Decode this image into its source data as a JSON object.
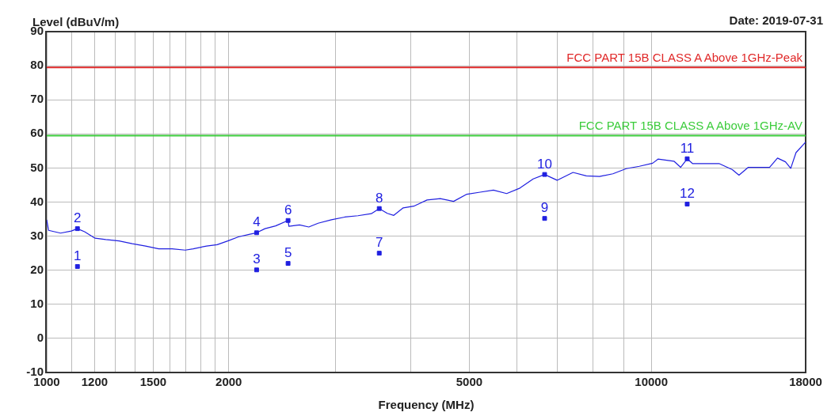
{
  "chart_data": {
    "type": "line",
    "xlabel": "Frequency (MHz)",
    "ylabel": "Level (dBuV/m)",
    "log": "x",
    "grid": true,
    "xlim": [
      1000,
      18000
    ],
    "xticks": [
      1000,
      {
        "value": 1100,
        "label": null
      },
      1200,
      {
        "value": 1300,
        "label": null
      },
      {
        "value": 1400,
        "label": null
      },
      1500,
      {
        "value": 1600,
        "label": null
      },
      {
        "value": 1700,
        "label": null
      },
      {
        "value": 1800,
        "label": null
      },
      {
        "value": 1900,
        "label": null
      },
      2000,
      {
        "value": 3000,
        "label": null
      },
      {
        "value": 4000,
        "label": null
      },
      5000,
      {
        "value": 6000,
        "label": null
      },
      {
        "value": 7000,
        "label": null
      },
      {
        "value": 8000,
        "label": null
      },
      {
        "value": 9000,
        "label": null
      },
      10000,
      18000
    ],
    "ylim": [
      -10,
      90
    ],
    "yticks": [
      -10,
      0,
      10,
      20,
      30,
      40,
      50,
      60,
      70,
      80,
      90
    ],
    "series": [
      {
        "type": "line",
        "color": "#2020e0",
        "x": [
          1000,
          1007,
          1054,
          1098,
          1124,
          1155,
          1202,
          1252,
          1317,
          1385,
          1457,
          1532,
          1612,
          1695,
          1747,
          1838,
          1914,
          1993,
          2075,
          2161,
          2224,
          2296,
          2391,
          2507,
          2515,
          2619,
          2713,
          2811,
          2957,
          3111,
          3272,
          3442,
          3548,
          3658,
          3750,
          3887,
          4046,
          4256,
          4476,
          4709,
          4953,
          5209,
          5481,
          5764,
          6062,
          6377,
          6661,
          6985,
          7421,
          7806,
          8211,
          8638,
          9087,
          9555,
          10051,
          10258,
          10899,
          11179,
          11464,
          11698,
          12308,
          12942,
          13614,
          13964,
          14467,
          15065,
          15688,
          16170,
          16669,
          17006,
          17350,
          18000
        ],
        "values": [
          34.8,
          31.7,
          30.9,
          31.5,
          32.2,
          31.3,
          29.4,
          29.0,
          28.6,
          27.8,
          27.1,
          26.3,
          26.3,
          25.9,
          26.3,
          27.1,
          27.5,
          28.6,
          29.8,
          30.5,
          31.0,
          32.2,
          33.0,
          34.6,
          32.9,
          33.3,
          32.7,
          33.8,
          34.8,
          35.6,
          36.0,
          36.6,
          38.1,
          36.7,
          36.1,
          38.3,
          38.8,
          40.6,
          41.0,
          40.2,
          42.3,
          42.9,
          43.5,
          42.5,
          44.1,
          46.8,
          48.1,
          46.4,
          48.7,
          47.7,
          47.5,
          48.3,
          49.8,
          50.5,
          51.4,
          52.6,
          52.0,
          50.2,
          52.7,
          51.3,
          51.3,
          51.3,
          49.5,
          47.9,
          50.2,
          50.2,
          50.2,
          52.9,
          51.8,
          49.9,
          54.5,
          57.6
        ]
      },
      {
        "type": "scatter",
        "color": "#2020e0",
        "marker": "square",
        "x": [
          1124,
          1124,
          2224,
          2224,
          2507,
          2507,
          3548,
          3548,
          6661,
          6661,
          11464,
          11464
        ],
        "values": [
          21.1,
          32.2,
          20.1,
          31.0,
          22.0,
          34.6,
          25.0,
          38.1,
          35.2,
          48.1,
          52.7,
          39.4
        ]
      }
    ],
    "ref_lines": [
      {
        "axis": "y",
        "value": 79.5,
        "label": "FCC PART 15B CLASS A Above 1GHz-Peak",
        "color": "#e02828"
      },
      {
        "axis": "y",
        "value": 59.5,
        "label": "FCC PART 15B CLASS A Above 1GHz-AV",
        "color": "#3ccc3c"
      }
    ],
    "annotations": [
      "Date: 2019-07-31",
      {
        "text": "1",
        "x": 1124,
        "y": 21.1
      },
      {
        "text": "2",
        "x": 1124,
        "y": 32.2
      },
      {
        "text": "3",
        "x": 2224,
        "y": 20.1
      },
      {
        "text": "4",
        "x": 2224,
        "y": 31.0
      },
      {
        "text": "5",
        "x": 2507,
        "y": 22.0
      },
      {
        "text": "6",
        "x": 2507,
        "y": 34.6
      },
      {
        "text": "7",
        "x": 3548,
        "y": 25.0
      },
      {
        "text": "8",
        "x": 3548,
        "y": 38.1
      },
      {
        "text": "9",
        "x": 6661,
        "y": 35.2
      },
      {
        "text": "10",
        "x": 6661,
        "y": 48.1
      },
      {
        "text": "11",
        "x": 11464,
        "y": 52.7
      },
      {
        "text": "12",
        "x": 11464,
        "y": 39.4
      }
    ]
  }
}
